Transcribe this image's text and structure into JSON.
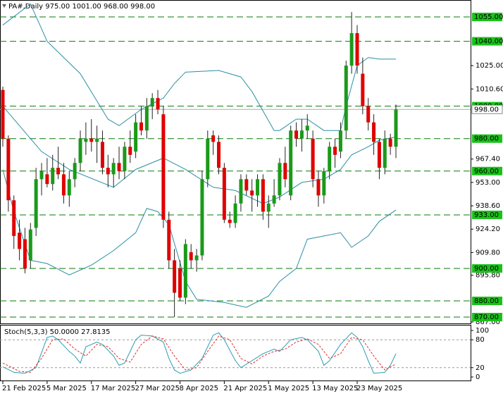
{
  "chart_data": {
    "type": "candlestick",
    "title": "PA#,Daily  975.00 1001.00 968.00 998.00",
    "categories": [
      "21 Feb 2025",
      null,
      null,
      null,
      null,
      null,
      null,
      null,
      "5 Mar 2025",
      null,
      null,
      null,
      null,
      null,
      null,
      null,
      "17 Mar 2025",
      null,
      null,
      null,
      null,
      null,
      null,
      null,
      "27 Mar 2025",
      null,
      null,
      null,
      null,
      null,
      null,
      null,
      "8 Apr 2025",
      null,
      null,
      null,
      null,
      null,
      null,
      null,
      "21 Apr 2025",
      null,
      null,
      null,
      null,
      null,
      null,
      null,
      "1 May 2025",
      null,
      null,
      null,
      null,
      null,
      null,
      null,
      "13 May 2025",
      null,
      null,
      null,
      null,
      null,
      null,
      null,
      "23 May 2025",
      null,
      null,
      null,
      null,
      null,
      null,
      null
    ],
    "open": [
      1010,
      980,
      942,
      922,
      918,
      905,
      925,
      955,
      958,
      952,
      962,
      958,
      945,
      955,
      965,
      978,
      980,
      978,
      978,
      962,
      958,
      965,
      960,
      975,
      972,
      990,
      985,
      1000,
      1005,
      995,
      930,
      905,
      900,
      882,
      910,
      905,
      908,
      955,
      982,
      978,
      962,
      930,
      928,
      940,
      955,
      948,
      945,
      955,
      935,
      940,
      945,
      965,
      945,
      985,
      980,
      985,
      980,
      955,
      945,
      960,
      975,
      972,
      985,
      1025,
      1045,
      1020,
      1000,
      990,
      978,
      962,
      980,
      975
    ],
    "high": [
      1012,
      982,
      945,
      930,
      925,
      928,
      962,
      965,
      968,
      970,
      975,
      965,
      960,
      968,
      985,
      990,
      992,
      988,
      985,
      970,
      968,
      975,
      978,
      985,
      995,
      1000,
      1005,
      1008,
      1010,
      1000,
      935,
      912,
      905,
      918,
      915,
      912,
      960,
      985,
      985,
      982,
      965,
      935,
      945,
      958,
      958,
      955,
      958,
      958,
      945,
      955,
      968,
      975,
      988,
      990,
      992,
      995,
      985,
      960,
      962,
      978,
      980,
      990,
      1028,
      1058,
      1050,
      1030,
      1005,
      995,
      980,
      985,
      983,
      1001
    ],
    "low": [
      975,
      935,
      912,
      905,
      897,
      900,
      920,
      945,
      950,
      948,
      955,
      940,
      938,
      950,
      960,
      970,
      972,
      965,
      958,
      950,
      950,
      955,
      955,
      965,
      968,
      982,
      980,
      992,
      995,
      925,
      900,
      870,
      880,
      878,
      900,
      898,
      905,
      950,
      970,
      958,
      928,
      925,
      925,
      935,
      945,
      935,
      938,
      930,
      925,
      938,
      942,
      950,
      942,
      975,
      972,
      980,
      950,
      938,
      940,
      955,
      962,
      968,
      980,
      1020,
      1020,
      995,
      985,
      970,
      955,
      958,
      970,
      968
    ],
    "close": [
      980,
      942,
      920,
      912,
      900,
      924,
      955,
      960,
      952,
      962,
      958,
      945,
      955,
      965,
      980,
      980,
      978,
      980,
      962,
      958,
      965,
      960,
      975,
      970,
      990,
      985,
      1000,
      1005,
      998,
      930,
      905,
      885,
      882,
      915,
      905,
      908,
      955,
      980,
      978,
      962,
      930,
      928,
      940,
      955,
      948,
      945,
      955,
      935,
      940,
      945,
      965,
      955,
      985,
      980,
      985,
      988,
      955,
      945,
      960,
      975,
      970,
      985,
      1025,
      1045,
      1025,
      1000,
      990,
      978,
      962,
      980,
      975,
      998
    ],
    "up_color": "#1a9a1a",
    "down_color": "#e00000",
    "overlays": [
      {
        "color": "#2b8fa3",
        "x": [
          0,
          5,
          8,
          14,
          19,
          21,
          25,
          29,
          31,
          33,
          39,
          43,
          45,
          49,
          50,
          53,
          55,
          58,
          61,
          62,
          64,
          66,
          68,
          71
        ],
        "values": [
          1050,
          1063,
          1040,
          1020,
          992,
          988,
          998,
          1005,
          1014,
          1021,
          1022,
          1018,
          1009,
          985,
          985,
          992,
          992,
          985,
          985,
          1000,
          1025,
          1030,
          1029,
          1029
        ]
      },
      {
        "color": "#2b8fa3",
        "x": [
          0,
          7,
          12,
          20,
          24,
          29,
          33,
          38,
          42,
          47,
          50,
          54,
          58,
          61,
          63,
          66,
          68,
          71
        ],
        "values": [
          1000,
          972,
          961,
          950,
          961,
          968,
          961,
          950,
          948,
          940,
          944,
          953,
          955,
          961,
          970,
          975,
          979,
          981
        ]
      },
      {
        "color": "#2b8fa3",
        "x": [
          0,
          2,
          5,
          8,
          12,
          16,
          20,
          24,
          26,
          28,
          30,
          33,
          35,
          40,
          44,
          48,
          50,
          53,
          55,
          58,
          61,
          63,
          66,
          68,
          71
        ],
        "values": [
          961,
          935,
          905,
          903,
          896,
          902,
          911,
          922,
          937,
          935,
          927,
          892,
          881,
          879,
          876,
          883,
          892,
          900,
          918,
          920,
          922,
          913,
          920,
          929,
          936
        ]
      }
    ],
    "ylim": [
      866.1,
      1065
    ],
    "yticks": [
      {
        "value": 1025,
        "label": "1025.00"
      },
      {
        "value": 1010.6,
        "label": "1010.60"
      },
      {
        "value": 967.4,
        "label": "967.40"
      },
      {
        "value": 953,
        "label": "953.00"
      },
      {
        "value": 938.6,
        "label": "938.60"
      },
      {
        "value": 924.2,
        "label": "924.20"
      },
      {
        "value": 909.8,
        "label": "909.80"
      },
      {
        "value": 895.8,
        "label": "895.80"
      },
      {
        "value": 867,
        "label": "867.00"
      }
    ],
    "levels": [
      {
        "value": 1055,
        "label": "1055.00"
      },
      {
        "value": 1040,
        "label": "1040.00"
      },
      {
        "value": 1000,
        "label": "1000.00"
      },
      {
        "value": 980,
        "label": "980.00"
      },
      {
        "value": 960,
        "label": "960.00"
      },
      {
        "value": 933,
        "label": "933.00"
      },
      {
        "value": 900,
        "label": "900.00"
      },
      {
        "value": 880,
        "label": "880.00"
      },
      {
        "value": 870,
        "label": "870.00"
      }
    ],
    "level_color": "#0a7a0a",
    "level_label_color": "#19c219",
    "current": {
      "value": 998,
      "label": "998.00"
    },
    "indicator": {
      "title": "Stoch(5,3,3) 50.0000 27.8135",
      "ylim": [
        -7.6,
        110.6
      ],
      "yticks": [
        100,
        80,
        20,
        0
      ],
      "levels": [
        80,
        20
      ],
      "series": [
        {
          "color": "#2b9db0",
          "dash": false,
          "x": [
            0,
            2,
            4,
            6,
            8,
            9,
            10,
            12,
            13,
            14,
            15,
            17,
            18,
            20,
            21,
            22,
            24,
            25,
            27,
            29,
            30,
            31,
            32,
            34,
            36,
            38,
            39,
            40,
            42,
            43,
            45,
            47,
            49,
            50,
            52,
            54,
            55,
            57,
            58,
            59,
            61,
            63,
            64,
            65,
            66,
            67,
            69,
            70,
            71
          ],
          "values": [
            22,
            10,
            8,
            20,
            85,
            88,
            80,
            55,
            45,
            30,
            65,
            75,
            70,
            45,
            25,
            30,
            80,
            90,
            88,
            75,
            40,
            15,
            8,
            15,
            40,
            90,
            95,
            80,
            35,
            20,
            35,
            50,
            60,
            55,
            80,
            85,
            80,
            55,
            25,
            35,
            70,
            95,
            85,
            65,
            35,
            8,
            10,
            25,
            50
          ]
        },
        {
          "color": "#e03030",
          "dash": true,
          "x": [
            0,
            3,
            5,
            7,
            9,
            11,
            13,
            15,
            17,
            19,
            21,
            23,
            25,
            27,
            29,
            31,
            33,
            35,
            37,
            39,
            41,
            43,
            45,
            47,
            49,
            51,
            53,
            55,
            57,
            59,
            61,
            63,
            65,
            67,
            69,
            71
          ],
          "values": [
            30,
            12,
            10,
            40,
            80,
            82,
            60,
            45,
            70,
            65,
            40,
            32,
            70,
            88,
            82,
            45,
            15,
            20,
            55,
            88,
            80,
            40,
            28,
            45,
            55,
            60,
            75,
            82,
            70,
            40,
            50,
            85,
            80,
            45,
            15,
            27.8135
          ]
        }
      ]
    }
  }
}
